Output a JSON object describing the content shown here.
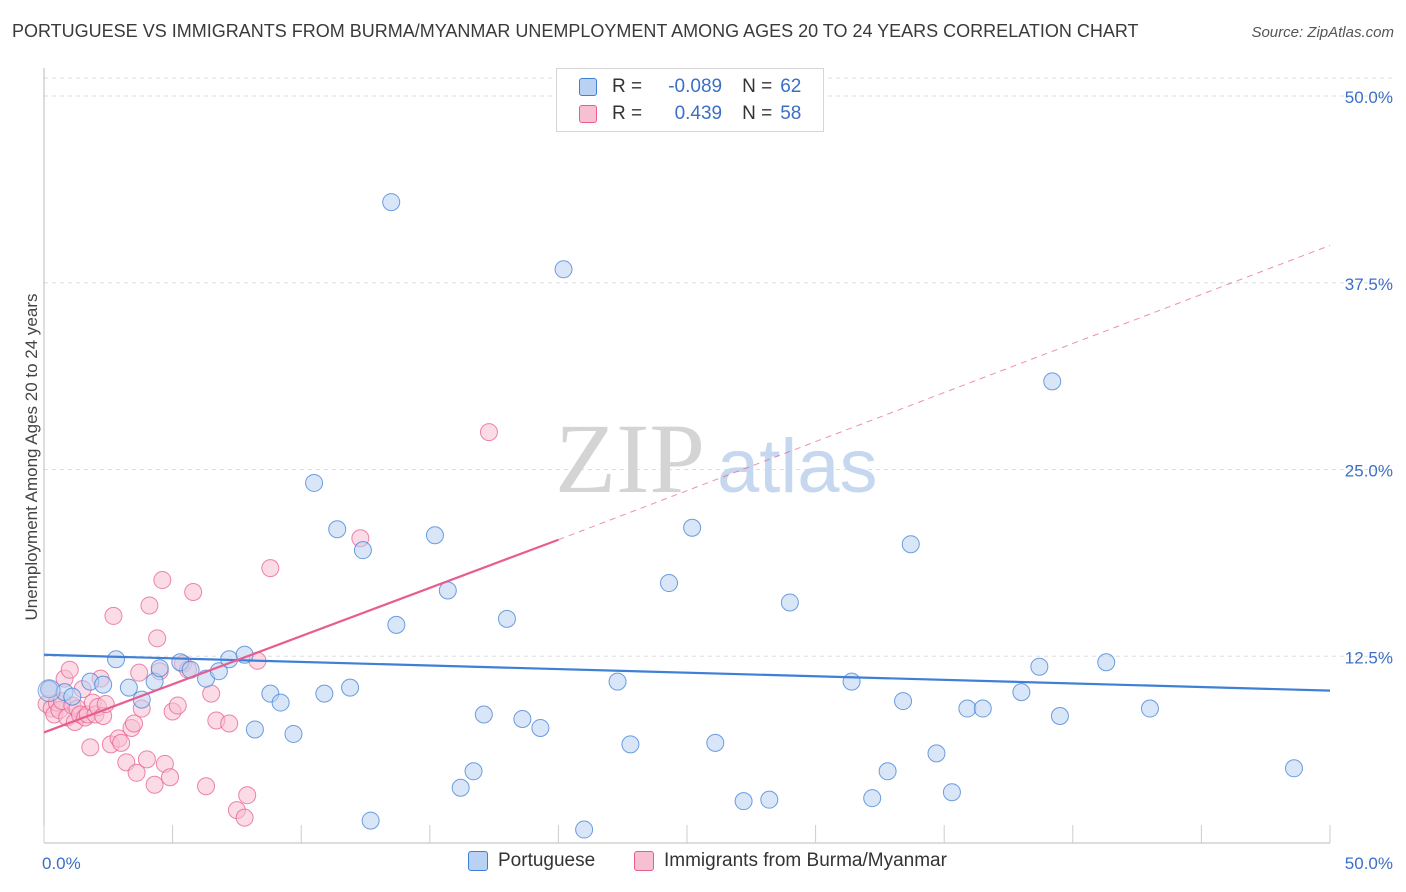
{
  "title": "PORTUGUESE VS IMMIGRANTS FROM BURMA/MYANMAR UNEMPLOYMENT AMONG AGES 20 TO 24 YEARS CORRELATION CHART",
  "source": "Source: ZipAtlas.com",
  "watermark": {
    "zip": "ZIP",
    "atlas": "atlas"
  },
  "colors": {
    "blue": "#3f7fd6",
    "blue_fill": "#b9d2f3",
    "pink": "#e85d8f",
    "pink_fill": "#f7bfd2",
    "tick_label": "#3b6fc7",
    "grid": "#dddddd"
  },
  "legend": {
    "rows": [
      {
        "r_label": "R =",
        "r_value": "-0.089",
        "n_label": "N =",
        "n_value": "62"
      },
      {
        "r_label": "R =",
        "r_value": "0.439",
        "n_label": "N =",
        "n_value": "58"
      }
    ]
  },
  "chart_data": {
    "type": "scatter",
    "title": "PORTUGUESE VS IMMIGRANTS FROM BURMA/MYANMAR UNEMPLOYMENT AMONG AGES 20 TO 24 YEARS CORRELATION CHART",
    "xlabel": "",
    "ylabel": "Unemployment Among Ages 20 to 24 years",
    "xlim": [
      0,
      50
    ],
    "ylim": [
      0,
      50
    ],
    "x_tick_labels": [
      "0.0%",
      "50.0%"
    ],
    "y_ticks": [
      12.5,
      25.0,
      37.5,
      50.0
    ],
    "y_tick_labels": [
      "12.5%",
      "25.0%",
      "37.5%",
      "50.0%"
    ],
    "grid": true,
    "legend_position": "top-center",
    "series": [
      {
        "name": "Portuguese",
        "color": "#3f7fd6",
        "R": -0.089,
        "N": 62,
        "trend": {
          "x": [
            0,
            50
          ],
          "y": [
            12.6,
            10.2
          ],
          "style": "solid"
        },
        "points": [
          [
            0.2,
            10.3
          ],
          [
            0.8,
            10.1
          ],
          [
            1.1,
            9.8
          ],
          [
            1.8,
            10.8
          ],
          [
            2.3,
            10.6
          ],
          [
            2.8,
            12.3
          ],
          [
            3.3,
            10.4
          ],
          [
            3.8,
            9.6
          ],
          [
            4.3,
            10.8
          ],
          [
            4.5,
            11.7
          ],
          [
            5.3,
            12.1
          ],
          [
            5.7,
            11.6
          ],
          [
            6.3,
            11.0
          ],
          [
            6.8,
            11.5
          ],
          [
            7.2,
            12.3
          ],
          [
            7.8,
            12.6
          ],
          [
            8.2,
            7.6
          ],
          [
            8.8,
            10.0
          ],
          [
            9.2,
            9.4
          ],
          [
            9.7,
            7.3
          ],
          [
            10.5,
            24.1
          ],
          [
            10.9,
            10.0
          ],
          [
            11.4,
            21.0
          ],
          [
            11.9,
            10.4
          ],
          [
            12.4,
            19.6
          ],
          [
            12.7,
            1.5
          ],
          [
            13.5,
            42.9
          ],
          [
            13.7,
            14.6
          ],
          [
            15.2,
            20.6
          ],
          [
            15.7,
            16.9
          ],
          [
            16.2,
            3.7
          ],
          [
            16.7,
            4.8
          ],
          [
            17.1,
            8.6
          ],
          [
            18.0,
            15.0
          ],
          [
            18.6,
            8.3
          ],
          [
            19.3,
            7.7
          ],
          [
            20.2,
            38.4
          ],
          [
            21.0,
            0.9
          ],
          [
            22.3,
            10.8
          ],
          [
            22.8,
            6.6
          ],
          [
            24.3,
            17.4
          ],
          [
            25.2,
            21.1
          ],
          [
            26.1,
            6.7
          ],
          [
            27.2,
            2.8
          ],
          [
            28.2,
            2.9
          ],
          [
            29.0,
            16.1
          ],
          [
            31.4,
            10.8
          ],
          [
            32.2,
            3.0
          ],
          [
            32.8,
            4.8
          ],
          [
            33.4,
            9.5
          ],
          [
            33.7,
            20.0
          ],
          [
            34.7,
            6.0
          ],
          [
            35.3,
            3.4
          ],
          [
            35.9,
            9.0
          ],
          [
            36.5,
            9.0
          ],
          [
            38.0,
            10.1
          ],
          [
            38.7,
            11.8
          ],
          [
            39.2,
            30.9
          ],
          [
            39.5,
            8.5
          ],
          [
            41.3,
            12.1
          ],
          [
            43.0,
            9.0
          ],
          [
            48.6,
            5.0
          ]
        ]
      },
      {
        "name": "Immigrants from Burma/Myanmar",
        "color": "#e85d8f",
        "R": 0.439,
        "N": 58,
        "trend": {
          "x": [
            0,
            20
          ],
          "y": [
            7.4,
            20.3
          ],
          "style": "solid"
        },
        "trend_extension": {
          "x": [
            20,
            50
          ],
          "y": [
            20.3,
            40.0
          ],
          "style": "dashed"
        },
        "points": [
          [
            0.1,
            9.3
          ],
          [
            0.2,
            10.3
          ],
          [
            0.3,
            9.0
          ],
          [
            0.4,
            8.6
          ],
          [
            0.5,
            9.4
          ],
          [
            0.6,
            8.9
          ],
          [
            0.7,
            9.5
          ],
          [
            0.8,
            11.0
          ],
          [
            0.9,
            8.4
          ],
          [
            1.0,
            11.6
          ],
          [
            1.1,
            9.2
          ],
          [
            1.2,
            8.1
          ],
          [
            1.3,
            9.0
          ],
          [
            1.4,
            8.6
          ],
          [
            1.5,
            10.3
          ],
          [
            1.6,
            8.4
          ],
          [
            1.7,
            8.6
          ],
          [
            1.8,
            6.4
          ],
          [
            1.9,
            9.4
          ],
          [
            2.0,
            8.6
          ],
          [
            2.1,
            9.1
          ],
          [
            2.2,
            11.0
          ],
          [
            2.3,
            8.5
          ],
          [
            2.4,
            9.3
          ],
          [
            2.6,
            6.6
          ],
          [
            2.7,
            15.2
          ],
          [
            2.9,
            7.0
          ],
          [
            3.0,
            6.7
          ],
          [
            3.2,
            5.4
          ],
          [
            3.4,
            7.7
          ],
          [
            3.5,
            8.0
          ],
          [
            3.6,
            4.7
          ],
          [
            3.7,
            11.4
          ],
          [
            3.8,
            9.0
          ],
          [
            4.0,
            5.6
          ],
          [
            4.1,
            15.9
          ],
          [
            4.3,
            3.9
          ],
          [
            4.4,
            13.7
          ],
          [
            4.5,
            11.5
          ],
          [
            4.6,
            17.6
          ],
          [
            4.7,
            5.3
          ],
          [
            4.9,
            4.4
          ],
          [
            5.0,
            8.8
          ],
          [
            5.2,
            9.2
          ],
          [
            5.4,
            12.0
          ],
          [
            5.6,
            11.6
          ],
          [
            5.8,
            16.8
          ],
          [
            6.3,
            3.8
          ],
          [
            6.5,
            10.0
          ],
          [
            6.7,
            8.2
          ],
          [
            7.2,
            8.0
          ],
          [
            7.5,
            2.2
          ],
          [
            7.8,
            1.7
          ],
          [
            7.9,
            3.2
          ],
          [
            8.8,
            18.4
          ],
          [
            12.3,
            20.4
          ],
          [
            17.3,
            27.5
          ],
          [
            8.3,
            12.2
          ]
        ]
      }
    ]
  },
  "bottom_legend": [
    {
      "label": "Portuguese"
    },
    {
      "label": "Immigrants from Burma/Myanmar"
    }
  ]
}
